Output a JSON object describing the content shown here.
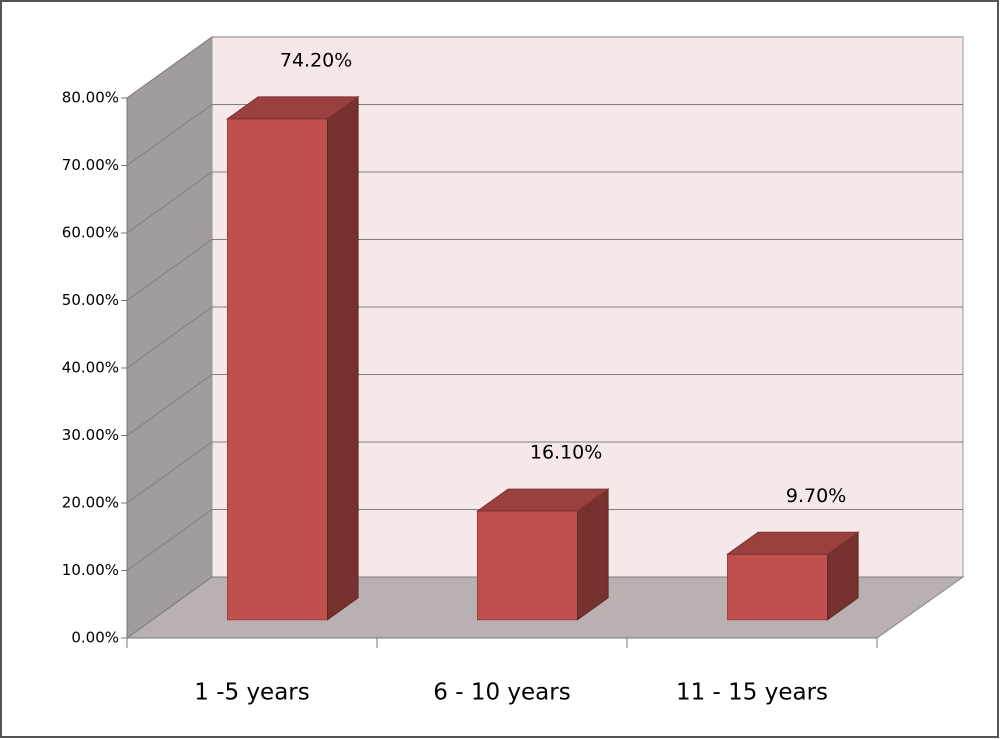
{
  "chart_data": {
    "type": "bar3d",
    "categories": [
      "1 -5 years",
      "6 - 10 years",
      "11 - 15 years"
    ],
    "values": [
      74.2,
      16.1,
      9.7
    ],
    "value_labels": [
      "74.20%",
      "16.10%",
      "9.70%"
    ],
    "color": "#c0504d",
    "ylim": [
      0,
      80
    ],
    "yticks": [
      {
        "value": 0,
        "label": "0.00%"
      },
      {
        "value": 10,
        "label": "10.00%"
      },
      {
        "value": 20,
        "label": "20.00%"
      },
      {
        "value": 30,
        "label": "30.00%"
      },
      {
        "value": 40,
        "label": "40.00%"
      },
      {
        "value": 50,
        "label": "50.00%"
      },
      {
        "value": 60,
        "label": "60.00%"
      },
      {
        "value": 70,
        "label": "70.00%"
      },
      {
        "value": 80,
        "label": "80.00%"
      }
    ],
    "grid": true
  }
}
